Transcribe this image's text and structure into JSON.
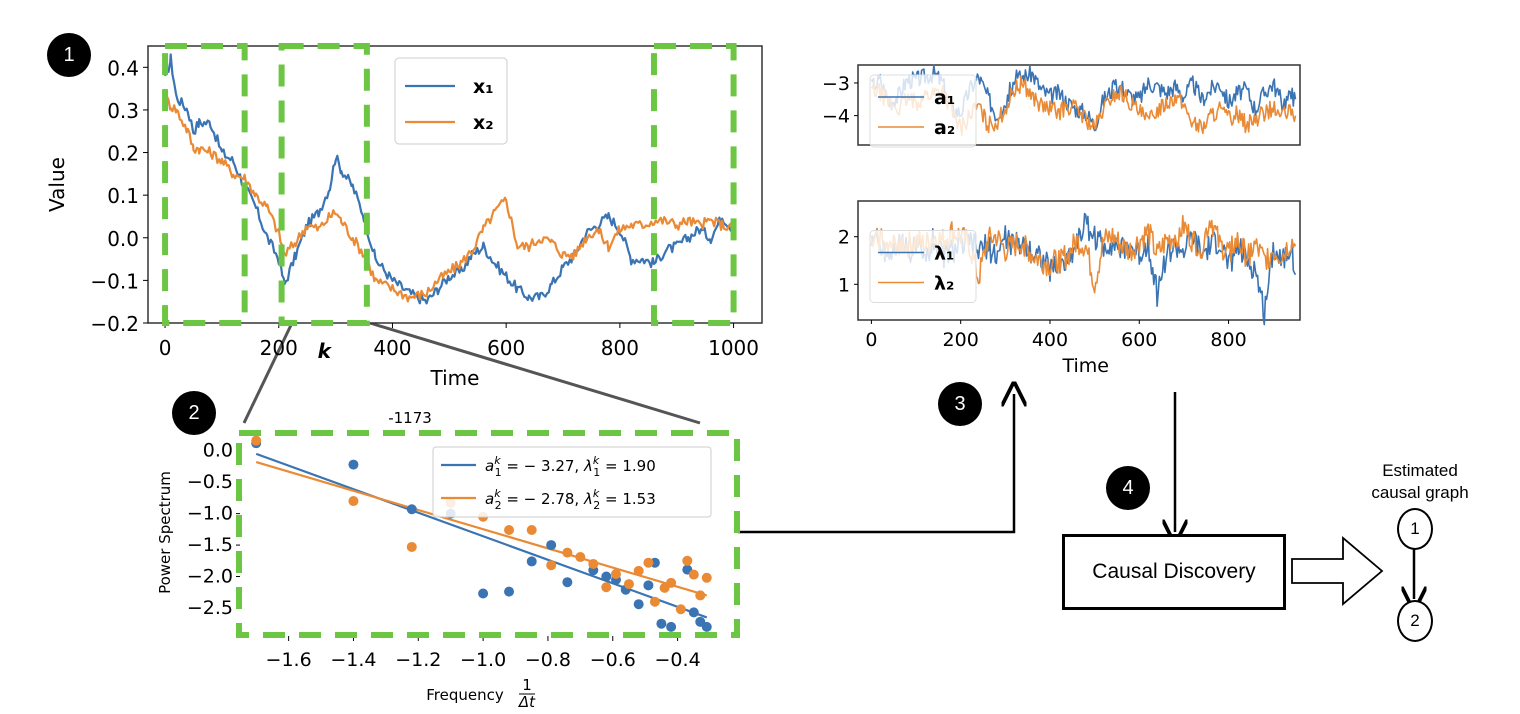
{
  "steps": [
    {
      "id": "1",
      "label": "1"
    },
    {
      "id": "2",
      "label": "2"
    },
    {
      "id": "3",
      "label": "3"
    },
    {
      "id": "4",
      "label": "4"
    }
  ],
  "colors": {
    "series1": "#3a74b3",
    "series2": "#ea8a35",
    "window": "#6cc644",
    "frame": "#333333"
  },
  "window_label": "k",
  "tiny_label": "-1173",
  "causal_discovery": {
    "label": "Causal Discovery"
  },
  "estimated_graph": {
    "title_line1": "Estimated",
    "title_line2": "causal graph",
    "nodes": [
      "1",
      "2"
    ],
    "edges": [
      [
        "1",
        "2"
      ]
    ]
  },
  "chart_data": [
    {
      "id": "timeseries",
      "type": "line",
      "title": "",
      "xlabel": "Time",
      "ylabel": "Value",
      "xlim": [
        -30,
        1050
      ],
      "ylim": [
        -0.2,
        0.45
      ],
      "xticks": [
        "0",
        "200",
        "400",
        "600",
        "800",
        "1000"
      ],
      "xtick_values": [
        0,
        200,
        400,
        600,
        800,
        1000
      ],
      "yticks": [
        "−0.2",
        "−0.1",
        "0.0",
        "0.1",
        "0.2",
        "0.3",
        "0.4"
      ],
      "ytick_values": [
        -0.2,
        -0.1,
        0.0,
        0.1,
        0.2,
        0.3,
        0.4
      ],
      "legend": {
        "position": "upper-center",
        "entries": [
          "x₁",
          "x₂"
        ]
      },
      "windows": [
        [
          0,
          140
        ],
        [
          205,
          355
        ],
        [
          860,
          1000
        ]
      ],
      "highlighted_window_label": "k",
      "series": [
        {
          "name": "x1",
          "x": [
            0,
            10,
            20,
            40,
            50,
            60,
            80,
            100,
            120,
            140,
            160,
            180,
            200,
            210,
            230,
            250,
            270,
            290,
            300,
            310,
            330,
            350,
            370,
            400,
            430,
            460,
            480,
            500,
            520,
            540,
            560,
            580,
            600,
            620,
            640,
            660,
            680,
            700,
            720,
            740,
            760,
            780,
            800,
            820,
            840,
            860,
            880,
            900,
            920,
            940,
            960,
            980,
            1000
          ],
          "y": [
            0.37,
            0.42,
            0.33,
            0.3,
            0.25,
            0.27,
            0.27,
            0.2,
            0.18,
            0.12,
            0.07,
            0.0,
            -0.05,
            -0.11,
            -0.04,
            0.03,
            0.06,
            0.12,
            0.19,
            0.16,
            0.12,
            0.05,
            -0.05,
            -0.1,
            -0.13,
            -0.15,
            -0.12,
            -0.09,
            -0.08,
            -0.04,
            -0.02,
            -0.06,
            -0.09,
            -0.12,
            -0.14,
            -0.14,
            -0.11,
            -0.07,
            -0.04,
            0.01,
            0.03,
            0.05,
            0.02,
            -0.05,
            -0.05,
            -0.06,
            -0.03,
            -0.02,
            0.0,
            0.02,
            0.0,
            0.05,
            0.02
          ]
        },
        {
          "name": "x2",
          "x": [
            0,
            10,
            20,
            40,
            50,
            60,
            80,
            100,
            120,
            140,
            160,
            180,
            200,
            210,
            230,
            250,
            270,
            290,
            300,
            310,
            330,
            350,
            370,
            400,
            430,
            460,
            480,
            500,
            520,
            540,
            560,
            580,
            600,
            620,
            640,
            660,
            680,
            700,
            720,
            740,
            760,
            780,
            800,
            820,
            840,
            860,
            880,
            900,
            920,
            940,
            960,
            980,
            1000
          ],
          "y": [
            0.33,
            0.31,
            0.3,
            0.25,
            0.21,
            0.21,
            0.2,
            0.18,
            0.15,
            0.14,
            0.1,
            0.07,
            0.01,
            -0.04,
            -0.01,
            0.03,
            0.02,
            0.05,
            0.06,
            0.04,
            0.0,
            -0.04,
            -0.1,
            -0.12,
            -0.14,
            -0.13,
            -0.1,
            -0.08,
            -0.06,
            -0.03,
            0.02,
            0.06,
            0.09,
            -0.02,
            -0.02,
            0.0,
            -0.01,
            -0.04,
            -0.04,
            0.0,
            0.02,
            -0.02,
            0.02,
            0.03,
            0.03,
            0.04,
            0.04,
            0.03,
            0.04,
            0.03,
            0.04,
            0.03,
            0.02
          ]
        }
      ]
    },
    {
      "id": "spectrum",
      "type": "scatter",
      "title": "",
      "xlabel": "Frequency",
      "xlabel_fraction": {
        "num": "1",
        "den": "Δt"
      },
      "ylabel": "Power Spectrum",
      "xlim": [
        -1.75,
        -0.3
      ],
      "ylim": [
        -2.85,
        0.25
      ],
      "xticks": [
        "−1.6",
        "−1.4",
        "−1.2",
        "−1.0",
        "−0.8",
        "−0.6",
        "−0.4"
      ],
      "xtick_values": [
        -1.6,
        -1.4,
        -1.2,
        -1.0,
        -0.8,
        -0.6,
        -0.4
      ],
      "yticks": [
        "0.0",
        "−0.5",
        "−1.0",
        "−1.5",
        "−2.0",
        "−2.5"
      ],
      "ytick_values": [
        0.0,
        -0.5,
        -1.0,
        -1.5,
        -2.0,
        -2.5
      ],
      "legend": {
        "position": "top-right",
        "entries": [
          "a₁ᵏ = −3.27, λ₁ᵏ = 1.90",
          "a₂ᵏ = −2.78, λ₂ᵏ = 1.53"
        ]
      },
      "legend_parts": [
        {
          "a": "a",
          "sub": "1",
          "sup": "k",
          "aval": "= − 3.27,",
          "lam": "λ",
          "lval": "= 1.90"
        },
        {
          "a": "a",
          "sub": "2",
          "sup": "k",
          "aval": "= − 2.78,",
          "lam": "λ",
          "lval": "= 1.53"
        }
      ],
      "series": [
        {
          "name": "series1",
          "slope": 1.9,
          "fit_at_xmin": -0.05,
          "fit_at_xmax": -2.65,
          "x": [
            -1.7,
            -1.4,
            -1.22,
            -1.1,
            -1.0,
            -0.92,
            -0.85,
            -0.79,
            -0.74,
            -0.66,
            -0.62,
            -0.59,
            -0.56,
            -0.52,
            -0.49,
            -0.47,
            -0.45,
            -0.42,
            -0.37,
            -0.35,
            -0.33,
            -0.31
          ],
          "y": [
            0.12,
            -0.22,
            -0.93,
            -1.0,
            -2.27,
            -2.24,
            -1.76,
            -1.5,
            -2.09,
            -1.9,
            -2.0,
            -2.05,
            -2.21,
            -2.44,
            -2.14,
            -1.78,
            -2.75,
            -2.8,
            -1.89,
            -2.57,
            -2.72,
            -2.8
          ]
        },
        {
          "name": "series2",
          "slope": 1.53,
          "fit_at_xmin": -0.18,
          "fit_at_xmax": -2.3,
          "x": [
            -1.7,
            -1.4,
            -1.22,
            -1.1,
            -1.0,
            -0.92,
            -0.85,
            -0.79,
            -0.74,
            -0.7,
            -0.66,
            -0.62,
            -0.59,
            -0.55,
            -0.52,
            -0.49,
            -0.47,
            -0.44,
            -0.42,
            -0.39,
            -0.37,
            -0.35,
            -0.33,
            -0.31
          ],
          "y": [
            0.16,
            -0.8,
            -1.53,
            -0.83,
            -1.05,
            -1.26,
            -1.26,
            -1.82,
            -1.62,
            -1.69,
            -1.8,
            -2.17,
            -1.96,
            -2.12,
            -1.91,
            -1.78,
            -2.4,
            -2.18,
            -2.1,
            -2.52,
            -1.75,
            -1.97,
            -2.3,
            -2.02
          ]
        }
      ]
    },
    {
      "id": "a-params",
      "type": "line",
      "title": "",
      "xlabel": "",
      "ylabel": "",
      "xlim": [
        -30,
        960
      ],
      "ylim": [
        -4.9,
        -2.45
      ],
      "yticks": [
        "−3",
        "−4"
      ],
      "ytick_values": [
        -3,
        -4
      ],
      "legend": {
        "position": "center-left",
        "entries": [
          "a₁",
          "a₂"
        ]
      },
      "series": [
        {
          "name": "a1",
          "x": [
            0,
            20,
            40,
            60,
            80,
            100,
            120,
            140,
            160,
            180,
            200,
            220,
            240,
            260,
            280,
            300,
            320,
            340,
            360,
            380,
            400,
            420,
            440,
            460,
            480,
            500,
            520,
            540,
            560,
            580,
            600,
            620,
            640,
            660,
            680,
            700,
            720,
            740,
            760,
            780,
            800,
            820,
            840,
            860,
            880,
            900,
            920,
            940,
            950
          ],
          "y": [
            -3.1,
            -2.9,
            -3.6,
            -3.4,
            -2.9,
            -2.9,
            -2.8,
            -2.7,
            -3.0,
            -3.8,
            -3.9,
            -3.2,
            -2.8,
            -3.4,
            -4.0,
            -3.6,
            -2.9,
            -2.8,
            -2.7,
            -3.2,
            -3.4,
            -3.3,
            -3.6,
            -3.8,
            -3.9,
            -4.3,
            -3.5,
            -3.2,
            -3.1,
            -3.4,
            -3.5,
            -3.0,
            -3.1,
            -3.3,
            -3.1,
            -3.4,
            -3.0,
            -3.5,
            -3.2,
            -3.0,
            -3.6,
            -3.3,
            -3.2,
            -3.8,
            -3.3,
            -3.0,
            -3.6,
            -3.4,
            -3.5
          ]
        },
        {
          "name": "a2",
          "x": [
            0,
            20,
            40,
            60,
            80,
            100,
            120,
            140,
            160,
            180,
            200,
            220,
            240,
            260,
            280,
            300,
            320,
            340,
            360,
            380,
            400,
            420,
            440,
            460,
            480,
            500,
            520,
            540,
            560,
            580,
            600,
            620,
            640,
            660,
            680,
            700,
            720,
            740,
            760,
            780,
            800,
            820,
            840,
            860,
            880,
            900,
            920,
            940,
            950
          ],
          "y": [
            -3.2,
            -3.3,
            -3.6,
            -3.8,
            -3.5,
            -3.6,
            -3.4,
            -3.3,
            -3.2,
            -3.9,
            -4.4,
            -4.0,
            -3.7,
            -4.3,
            -4.2,
            -3.8,
            -3.2,
            -3.0,
            -3.4,
            -3.7,
            -3.8,
            -3.9,
            -3.7,
            -3.8,
            -4.1,
            -4.4,
            -3.8,
            -3.4,
            -3.3,
            -3.6,
            -3.9,
            -4.2,
            -3.8,
            -3.6,
            -3.4,
            -3.7,
            -4.2,
            -4.4,
            -4.0,
            -3.8,
            -4.1,
            -3.9,
            -4.3,
            -4.1,
            -3.9,
            -3.8,
            -4.0,
            -3.9,
            -4.0
          ]
        }
      ]
    },
    {
      "id": "lambda-params",
      "type": "line",
      "title": "",
      "xlabel": "Time",
      "ylabel": "",
      "xlim": [
        -30,
        960
      ],
      "ylim": [
        0.25,
        2.75
      ],
      "xticks": [
        "0",
        "200",
        "400",
        "600",
        "800"
      ],
      "xtick_values": [
        0,
        200,
        400,
        600,
        800
      ],
      "yticks": [
        "1",
        "2"
      ],
      "ytick_values": [
        1,
        2
      ],
      "legend": {
        "position": "center-left",
        "entries": [
          "λ₁",
          "λ₂"
        ]
      },
      "series": [
        {
          "name": "lambda1",
          "x": [
            0,
            20,
            40,
            60,
            80,
            100,
            120,
            140,
            160,
            180,
            200,
            220,
            240,
            260,
            280,
            300,
            320,
            340,
            360,
            380,
            400,
            420,
            440,
            460,
            480,
            500,
            520,
            540,
            560,
            580,
            600,
            620,
            640,
            660,
            680,
            700,
            720,
            740,
            760,
            780,
            800,
            820,
            840,
            860,
            880,
            900,
            920,
            940,
            950
          ],
          "y": [
            2.0,
            1.8,
            1.6,
            1.9,
            1.7,
            1.8,
            1.5,
            2.0,
            1.6,
            1.7,
            1.8,
            1.9,
            1.7,
            1.8,
            1.6,
            2.0,
            1.8,
            1.9,
            1.7,
            1.6,
            1.3,
            1.4,
            1.5,
            1.9,
            2.3,
            2.0,
            1.8,
            1.9,
            1.7,
            1.8,
            1.6,
            1.9,
            0.8,
            1.6,
            1.8,
            1.7,
            2.0,
            1.6,
            1.8,
            1.9,
            1.4,
            1.8,
            1.5,
            1.3,
            0.4,
            1.8,
            1.5,
            1.9,
            1.2
          ]
        },
        {
          "name": "lambda2",
          "x": [
            0,
            20,
            40,
            60,
            80,
            100,
            120,
            140,
            160,
            180,
            200,
            220,
            240,
            260,
            280,
            300,
            320,
            340,
            360,
            380,
            400,
            420,
            440,
            460,
            480,
            500,
            520,
            540,
            560,
            580,
            600,
            620,
            640,
            660,
            680,
            700,
            720,
            740,
            760,
            780,
            800,
            820,
            840,
            860,
            880,
            900,
            920,
            940,
            950
          ],
          "y": [
            1.8,
            2.0,
            1.7,
            1.9,
            1.8,
            1.9,
            1.8,
            2.0,
            1.9,
            2.1,
            2.0,
            1.8,
            1.1,
            1.9,
            2.0,
            1.7,
            1.8,
            1.9,
            1.6,
            1.5,
            1.4,
            1.5,
            1.6,
            1.9,
            1.8,
            1.0,
            1.9,
            2.0,
            1.8,
            1.7,
            1.9,
            2.1,
            1.6,
            1.9,
            2.0,
            2.2,
            1.9,
            1.8,
            2.4,
            1.8,
            1.7,
            1.9,
            1.6,
            1.8,
            1.5,
            1.7,
            1.6,
            1.9,
            1.8
          ]
        }
      ]
    }
  ]
}
